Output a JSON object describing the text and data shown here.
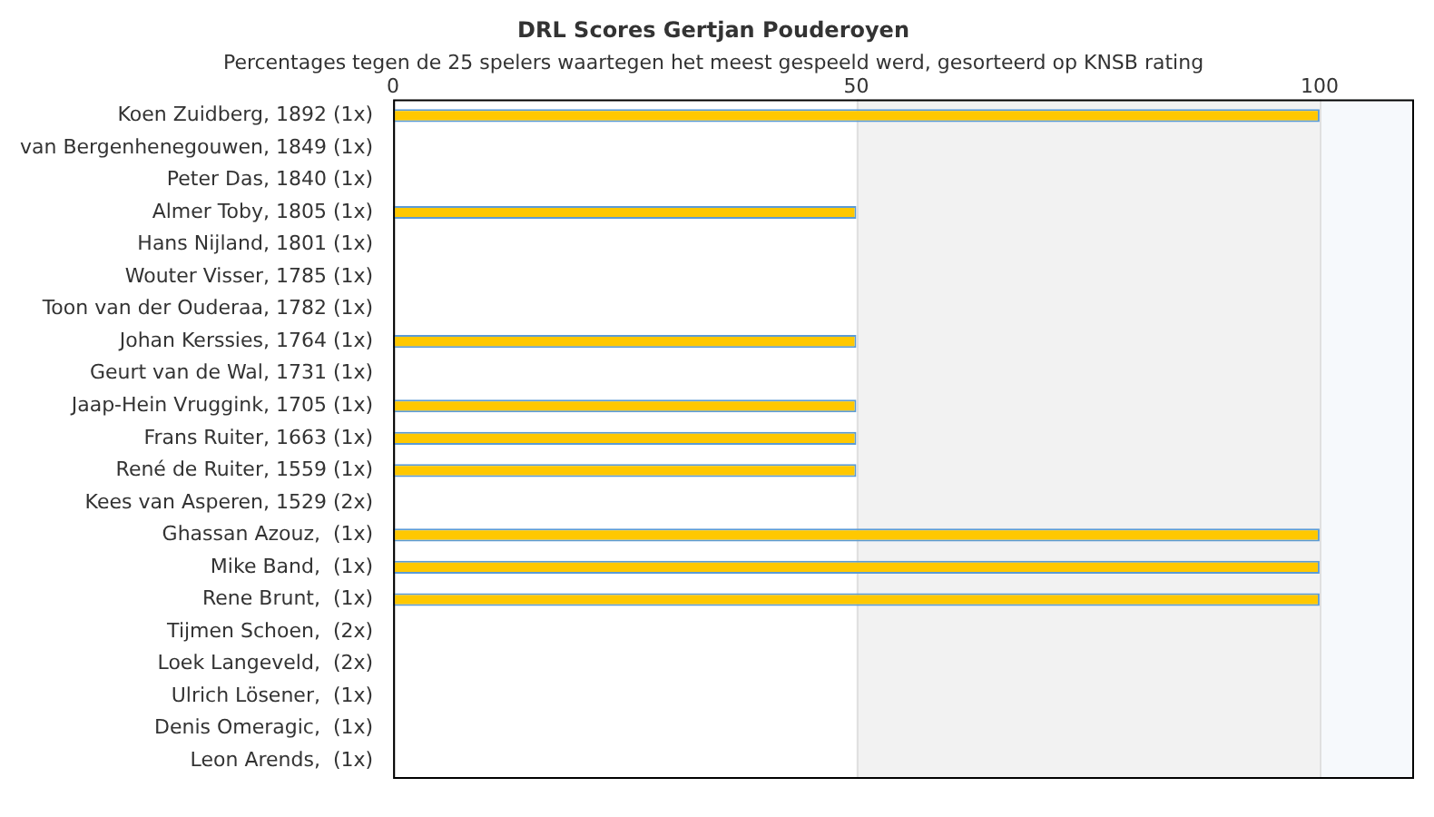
{
  "chart_data": {
    "type": "bar",
    "orientation": "horizontal",
    "title": "DRL Scores Gertjan Pouderoyen",
    "subtitle": "Percentages tegen de 25 spelers waartegen het meest gespeeld werd, gesorteerd op KNSB rating",
    "categories": [
      "Koen Zuidberg, 1892 (1x)",
      "van Bergenhenegouwen, 1849 (1x)",
      "Peter Das, 1840 (1x)",
      "Almer Toby, 1805 (1x)",
      "Hans Nijland, 1801 (1x)",
      "Wouter Visser, 1785 (1x)",
      "Toon van der Ouderaa, 1782 (1x)",
      "Johan Kerssies, 1764 (1x)",
      "Geurt van de Wal, 1731 (1x)",
      "Jaap-Hein Vruggink, 1705 (1x)",
      "Frans Ruiter, 1663 (1x)",
      "René de Ruiter, 1559 (1x)",
      "Kees van Asperen, 1529 (2x)",
      "Ghassan Azouz,  (1x)",
      "Mike Band,  (1x)",
      "Rene Brunt,  (1x)",
      "Tijmen Schoen,  (2x)",
      "Loek Langeveld,  (2x)",
      "Ulrich Lösener,  (1x)",
      "Denis Omeragic,  (1x)",
      "Leon Arends,  (1x)"
    ],
    "values": [
      100,
      0,
      0,
      50,
      0,
      0,
      0,
      50,
      0,
      50,
      50,
      50,
      0,
      100,
      100,
      100,
      0,
      0,
      0,
      0,
      0
    ],
    "color": "#ffc800",
    "xlim": [
      0,
      110
    ],
    "xticks": [
      0,
      50,
      100
    ],
    "grid": "x",
    "bands": [
      {
        "axis": "x",
        "from": 50,
        "to": 100,
        "color": "#f2f2f2"
      },
      {
        "axis": "x",
        "from": 100,
        "to": 110,
        "color": "#f6f9fc"
      }
    ]
  }
}
